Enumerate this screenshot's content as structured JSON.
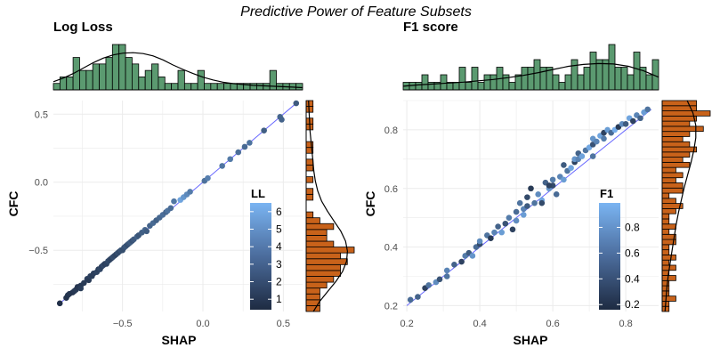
{
  "figure": {
    "title": "Predictive Power of Feature Subsets"
  },
  "colors": {
    "grid": "#ebebeb",
    "line": "#6666ff",
    "hist_x_fill": "#5b9a70",
    "hist_y_fill": "#c8621a",
    "point_low": "#1e2b42",
    "point_high": "#7ab4f2"
  },
  "chart_data": [
    {
      "type": "scatter",
      "title": "Log Loss",
      "xlabel": "SHAP",
      "ylabel": "CFC",
      "xlim": [
        -0.93,
        0.62
      ],
      "ylim": [
        -0.95,
        0.6
      ],
      "xticks": [
        -0.5,
        0.0,
        0.5
      ],
      "xtick_labels": [
        "−0.5",
        "0.0",
        "0.5"
      ],
      "yticks": [
        -0.5,
        0.0,
        0.5
      ],
      "ytick_labels": [
        "−0.5",
        "0.0",
        "0.5"
      ],
      "grid": true,
      "diagonal_line": [
        [
          -0.89,
          -0.89
        ],
        [
          0.58,
          0.58
        ]
      ],
      "legend": {
        "title": "LL",
        "ticks": [
          1,
          2,
          3,
          4,
          5,
          6
        ],
        "range": [
          0.4,
          6.5
        ],
        "placement": "inside right"
      },
      "points": [
        {
          "x": -0.89,
          "y": -0.89,
          "c": 0.6
        },
        {
          "x": -0.85,
          "y": -0.85,
          "c": 0.7
        },
        {
          "x": -0.84,
          "y": -0.83,
          "c": 0.8
        },
        {
          "x": -0.83,
          "y": -0.82,
          "c": 0.9
        },
        {
          "x": -0.81,
          "y": -0.81,
          "c": 0.8
        },
        {
          "x": -0.8,
          "y": -0.8,
          "c": 1.0
        },
        {
          "x": -0.79,
          "y": -0.79,
          "c": 1.1
        },
        {
          "x": -0.78,
          "y": -0.77,
          "c": 0.9
        },
        {
          "x": -0.76,
          "y": -0.76,
          "c": 1.0
        },
        {
          "x": -0.76,
          "y": -0.78,
          "c": 1.2
        },
        {
          "x": -0.74,
          "y": -0.74,
          "c": 1.1
        },
        {
          "x": -0.72,
          "y": -0.71,
          "c": 1.3
        },
        {
          "x": -0.71,
          "y": -0.72,
          "c": 1.1
        },
        {
          "x": -0.7,
          "y": -0.69,
          "c": 1.4
        },
        {
          "x": -0.69,
          "y": -0.69,
          "c": 1.2
        },
        {
          "x": -0.68,
          "y": -0.67,
          "c": 1.3
        },
        {
          "x": -0.66,
          "y": -0.66,
          "c": 1.5
        },
        {
          "x": -0.65,
          "y": -0.64,
          "c": 1.2
        },
        {
          "x": -0.64,
          "y": -0.64,
          "c": 1.6
        },
        {
          "x": -0.63,
          "y": -0.62,
          "c": 1.4
        },
        {
          "x": -0.62,
          "y": -0.61,
          "c": 1.7
        },
        {
          "x": -0.61,
          "y": -0.6,
          "c": 1.3
        },
        {
          "x": -0.6,
          "y": -0.6,
          "c": 1.5
        },
        {
          "x": -0.59,
          "y": -0.58,
          "c": 1.8
        },
        {
          "x": -0.58,
          "y": -0.57,
          "c": 1.6
        },
        {
          "x": -0.57,
          "y": -0.56,
          "c": 1.4
        },
        {
          "x": -0.56,
          "y": -0.55,
          "c": 1.9
        },
        {
          "x": -0.55,
          "y": -0.54,
          "c": 1.7
        },
        {
          "x": -0.54,
          "y": -0.53,
          "c": 1.5
        },
        {
          "x": -0.53,
          "y": -0.52,
          "c": 2.0
        },
        {
          "x": -0.52,
          "y": -0.51,
          "c": 1.8
        },
        {
          "x": -0.51,
          "y": -0.5,
          "c": 2.2
        },
        {
          "x": -0.5,
          "y": -0.5,
          "c": 1.9
        },
        {
          "x": -0.49,
          "y": -0.48,
          "c": 2.1
        },
        {
          "x": -0.48,
          "y": -0.47,
          "c": 2.4
        },
        {
          "x": -0.47,
          "y": -0.46,
          "c": 2.0
        },
        {
          "x": -0.46,
          "y": -0.45,
          "c": 2.3
        },
        {
          "x": -0.45,
          "y": -0.44,
          "c": 2.6
        },
        {
          "x": -0.44,
          "y": -0.43,
          "c": 2.2
        },
        {
          "x": -0.43,
          "y": -0.42,
          "c": 2.5
        },
        {
          "x": -0.41,
          "y": -0.4,
          "c": 2.8
        },
        {
          "x": -0.4,
          "y": -0.39,
          "c": 2.3
        },
        {
          "x": -0.38,
          "y": -0.37,
          "c": 2.7
        },
        {
          "x": -0.36,
          "y": -0.35,
          "c": 3.0
        },
        {
          "x": -0.35,
          "y": -0.36,
          "c": 2.6
        },
        {
          "x": -0.33,
          "y": -0.32,
          "c": 2.9
        },
        {
          "x": -0.31,
          "y": -0.3,
          "c": 3.2
        },
        {
          "x": -0.29,
          "y": -0.28,
          "c": 2.8
        },
        {
          "x": -0.27,
          "y": -0.26,
          "c": 3.1
        },
        {
          "x": -0.25,
          "y": -0.24,
          "c": 3.4
        },
        {
          "x": -0.23,
          "y": -0.22,
          "c": 3.0
        },
        {
          "x": -0.22,
          "y": -0.21,
          "c": 3.6
        },
        {
          "x": -0.2,
          "y": -0.19,
          "c": 3.3
        },
        {
          "x": -0.14,
          "y": -0.13,
          "c": 5.8
        },
        {
          "x": -0.12,
          "y": -0.11,
          "c": 5.2
        },
        {
          "x": -0.1,
          "y": -0.09,
          "c": 4.6
        },
        {
          "x": -0.08,
          "y": -0.07,
          "c": 4.0
        },
        {
          "x": -0.18,
          "y": -0.14,
          "c": 3.8
        },
        {
          "x": 0.01,
          "y": 0.01,
          "c": 3.5
        },
        {
          "x": 0.03,
          "y": 0.03,
          "c": 4.1
        },
        {
          "x": 0.12,
          "y": 0.12,
          "c": 3.7
        },
        {
          "x": 0.17,
          "y": 0.17,
          "c": 3.9
        },
        {
          "x": 0.22,
          "y": 0.22,
          "c": 3.4
        },
        {
          "x": 0.26,
          "y": 0.26,
          "c": 3.2
        },
        {
          "x": 0.29,
          "y": 0.29,
          "c": 3.6
        },
        {
          "x": 0.38,
          "y": 0.38,
          "c": 2.7
        },
        {
          "x": 0.48,
          "y": 0.48,
          "c": 3.0
        },
        {
          "x": 0.49,
          "y": 0.46,
          "c": 2.9
        },
        {
          "x": 0.58,
          "y": 0.58,
          "c": 2.5
        }
      ],
      "hist_x": {
        "range": [
          -0.93,
          0.62
        ],
        "counts": [
          1,
          2,
          2,
          5,
          3,
          3,
          4,
          4,
          5,
          7,
          7,
          5,
          4,
          2,
          3,
          4,
          2,
          1,
          1,
          3,
          1,
          1,
          3,
          1,
          1,
          1,
          1,
          1,
          1,
          1,
          1,
          1,
          1,
          3,
          1,
          1,
          1,
          1
        ],
        "density": [
          0.18,
          0.26,
          0.36,
          0.48,
          0.6,
          0.7,
          0.77,
          0.81,
          0.82,
          0.8,
          0.75,
          0.66,
          0.55,
          0.45,
          0.36,
          0.28,
          0.22,
          0.17,
          0.14,
          0.12,
          0.1,
          0.09,
          0.08,
          0.07,
          0.06,
          0.05
        ]
      },
      "hist_y": {
        "range": [
          -0.95,
          0.6
        ],
        "counts": [
          2,
          2,
          2,
          2,
          3,
          4,
          5,
          5,
          6,
          5,
          7,
          4,
          3,
          3,
          4,
          2,
          1,
          0,
          0,
          1,
          1,
          0,
          1,
          0,
          1,
          1,
          0,
          1,
          1,
          0,
          0,
          1,
          1,
          0,
          1,
          1
        ],
        "density": [
          0.15,
          0.28,
          0.45,
          0.62,
          0.76,
          0.84,
          0.86,
          0.82,
          0.72,
          0.58,
          0.44,
          0.32,
          0.24,
          0.19,
          0.16,
          0.14,
          0.12,
          0.1,
          0.08,
          0.07,
          0.06,
          0.05
        ]
      }
    },
    {
      "type": "scatter",
      "title": "F1 score",
      "xlabel": "SHAP",
      "ylabel": "CFC",
      "xlim": [
        0.19,
        0.89
      ],
      "ylim": [
        0.18,
        0.9
      ],
      "xticks": [
        0.2,
        0.4,
        0.6,
        0.8
      ],
      "xtick_labels": [
        "0.2",
        "0.4",
        "0.6",
        "0.8"
      ],
      "yticks": [
        0.2,
        0.4,
        0.6,
        0.8
      ],
      "ytick_labels": [
        "0.2",
        "0.4",
        "0.6",
        "0.8"
      ],
      "grid": true,
      "diagonal_line": [
        [
          0.2,
          0.2
        ],
        [
          0.87,
          0.87
        ]
      ],
      "legend": {
        "title": "F1",
        "ticks": [
          0.2,
          0.4,
          0.6,
          0.8
        ],
        "range": [
          0.16,
          0.99
        ],
        "placement": "inside right"
      },
      "points": [
        {
          "x": 0.21,
          "y": 0.22,
          "c": 0.55
        },
        {
          "x": 0.23,
          "y": 0.23,
          "c": 0.5
        },
        {
          "x": 0.25,
          "y": 0.26,
          "c": 0.3
        },
        {
          "x": 0.26,
          "y": 0.27,
          "c": 0.6
        },
        {
          "x": 0.28,
          "y": 0.28,
          "c": 0.75
        },
        {
          "x": 0.29,
          "y": 0.29,
          "c": 0.4
        },
        {
          "x": 0.31,
          "y": 0.3,
          "c": 0.6
        },
        {
          "x": 0.31,
          "y": 0.32,
          "c": 0.7
        },
        {
          "x": 0.33,
          "y": 0.34,
          "c": 0.5
        },
        {
          "x": 0.35,
          "y": 0.35,
          "c": 0.3
        },
        {
          "x": 0.36,
          "y": 0.37,
          "c": 0.65
        },
        {
          "x": 0.37,
          "y": 0.38,
          "c": 0.45
        },
        {
          "x": 0.38,
          "y": 0.37,
          "c": 0.8
        },
        {
          "x": 0.39,
          "y": 0.4,
          "c": 0.55
        },
        {
          "x": 0.4,
          "y": 0.41,
          "c": 0.35
        },
        {
          "x": 0.4,
          "y": 0.42,
          "c": 0.75
        },
        {
          "x": 0.42,
          "y": 0.44,
          "c": 0.6
        },
        {
          "x": 0.43,
          "y": 0.43,
          "c": 0.25
        },
        {
          "x": 0.44,
          "y": 0.45,
          "c": 0.7
        },
        {
          "x": 0.45,
          "y": 0.47,
          "c": 0.5
        },
        {
          "x": 0.46,
          "y": 0.45,
          "c": 0.85
        },
        {
          "x": 0.47,
          "y": 0.48,
          "c": 0.4
        },
        {
          "x": 0.48,
          "y": 0.5,
          "c": 0.65
        },
        {
          "x": 0.49,
          "y": 0.46,
          "c": 0.3
        },
        {
          "x": 0.5,
          "y": 0.49,
          "c": 0.75
        },
        {
          "x": 0.5,
          "y": 0.52,
          "c": 0.55
        },
        {
          "x": 0.51,
          "y": 0.55,
          "c": 0.6
        },
        {
          "x": 0.52,
          "y": 0.51,
          "c": 0.85
        },
        {
          "x": 0.52,
          "y": 0.53,
          "c": 0.7
        },
        {
          "x": 0.53,
          "y": 0.54,
          "c": 0.45
        },
        {
          "x": 0.53,
          "y": 0.57,
          "c": 0.35
        },
        {
          "x": 0.54,
          "y": 0.6,
          "c": 0.25
        },
        {
          "x": 0.55,
          "y": 0.55,
          "c": 0.6
        },
        {
          "x": 0.56,
          "y": 0.58,
          "c": 0.75
        },
        {
          "x": 0.57,
          "y": 0.56,
          "c": 0.9
        },
        {
          "x": 0.58,
          "y": 0.62,
          "c": 0.5
        },
        {
          "x": 0.59,
          "y": 0.6,
          "c": 0.8
        },
        {
          "x": 0.6,
          "y": 0.63,
          "c": 0.65
        },
        {
          "x": 0.6,
          "y": 0.61,
          "c": 0.35
        },
        {
          "x": 0.61,
          "y": 0.58,
          "c": 0.55
        },
        {
          "x": 0.62,
          "y": 0.64,
          "c": 0.7
        },
        {
          "x": 0.63,
          "y": 0.63,
          "c": 0.85
        },
        {
          "x": 0.63,
          "y": 0.68,
          "c": 0.45
        },
        {
          "x": 0.64,
          "y": 0.66,
          "c": 0.6
        },
        {
          "x": 0.65,
          "y": 0.67,
          "c": 0.9
        },
        {
          "x": 0.66,
          "y": 0.69,
          "c": 0.3
        },
        {
          "x": 0.66,
          "y": 0.7,
          "c": 0.8
        },
        {
          "x": 0.67,
          "y": 0.7,
          "c": 0.7
        },
        {
          "x": 0.67,
          "y": 0.72,
          "c": 0.5
        },
        {
          "x": 0.68,
          "y": 0.71,
          "c": 0.88
        },
        {
          "x": 0.69,
          "y": 0.73,
          "c": 0.6
        },
        {
          "x": 0.7,
          "y": 0.74,
          "c": 0.92
        },
        {
          "x": 0.71,
          "y": 0.75,
          "c": 0.4
        },
        {
          "x": 0.71,
          "y": 0.77,
          "c": 0.8
        },
        {
          "x": 0.72,
          "y": 0.76,
          "c": 0.7
        },
        {
          "x": 0.73,
          "y": 0.78,
          "c": 0.9
        },
        {
          "x": 0.74,
          "y": 0.79,
          "c": 0.3
        },
        {
          "x": 0.74,
          "y": 0.77,
          "c": 0.65
        },
        {
          "x": 0.75,
          "y": 0.8,
          "c": 0.85
        },
        {
          "x": 0.76,
          "y": 0.79,
          "c": 0.55
        },
        {
          "x": 0.77,
          "y": 0.8,
          "c": 0.95
        },
        {
          "x": 0.78,
          "y": 0.81,
          "c": 0.25
        },
        {
          "x": 0.79,
          "y": 0.82,
          "c": 0.75
        },
        {
          "x": 0.8,
          "y": 0.82,
          "c": 0.45
        },
        {
          "x": 0.81,
          "y": 0.84,
          "c": 0.9
        },
        {
          "x": 0.82,
          "y": 0.83,
          "c": 0.3
        },
        {
          "x": 0.83,
          "y": 0.85,
          "c": 0.7
        },
        {
          "x": 0.84,
          "y": 0.84,
          "c": 0.5
        },
        {
          "x": 0.85,
          "y": 0.86,
          "c": 0.85
        },
        {
          "x": 0.86,
          "y": 0.87,
          "c": 0.6
        },
        {
          "x": 0.71,
          "y": 0.71,
          "c": 0.6
        },
        {
          "x": 0.59,
          "y": 0.61,
          "c": 0.3
        },
        {
          "x": 0.57,
          "y": 0.55,
          "c": 0.35
        }
      ],
      "hist_x": {
        "range": [
          0.19,
          0.89
        ],
        "counts": [
          1,
          1,
          1,
          2,
          1,
          1,
          2,
          1,
          1,
          3,
          1,
          3,
          1,
          2,
          2,
          3,
          2,
          1,
          2,
          3,
          3,
          4,
          3,
          3,
          2,
          1,
          2,
          4,
          2,
          3,
          5,
          4,
          4,
          6,
          3,
          3,
          2,
          5,
          3,
          2,
          4
        ],
        "density": [
          0.08,
          0.11,
          0.13,
          0.15,
          0.17,
          0.2,
          0.23,
          0.27,
          0.32,
          0.38,
          0.45,
          0.52,
          0.56,
          0.58,
          0.57,
          0.52,
          0.42,
          0.28
        ]
      },
      "hist_y": {
        "range": [
          0.18,
          0.9
        ],
        "counts": [
          1,
          1,
          2,
          1,
          1,
          1,
          2,
          1,
          2,
          1,
          2,
          1,
          1,
          2,
          2,
          1,
          2,
          1,
          1,
          2,
          3,
          2,
          1,
          3,
          3,
          2,
          3,
          2,
          4,
          3,
          4,
          5,
          4,
          3,
          4,
          6,
          4,
          5,
          7,
          5,
          5
        ],
        "density": [
          0.06,
          0.08,
          0.1,
          0.13,
          0.17,
          0.21,
          0.25,
          0.29,
          0.34,
          0.4,
          0.46,
          0.53,
          0.6,
          0.66,
          0.7,
          0.7,
          0.64,
          0.52
        ]
      }
    }
  ]
}
